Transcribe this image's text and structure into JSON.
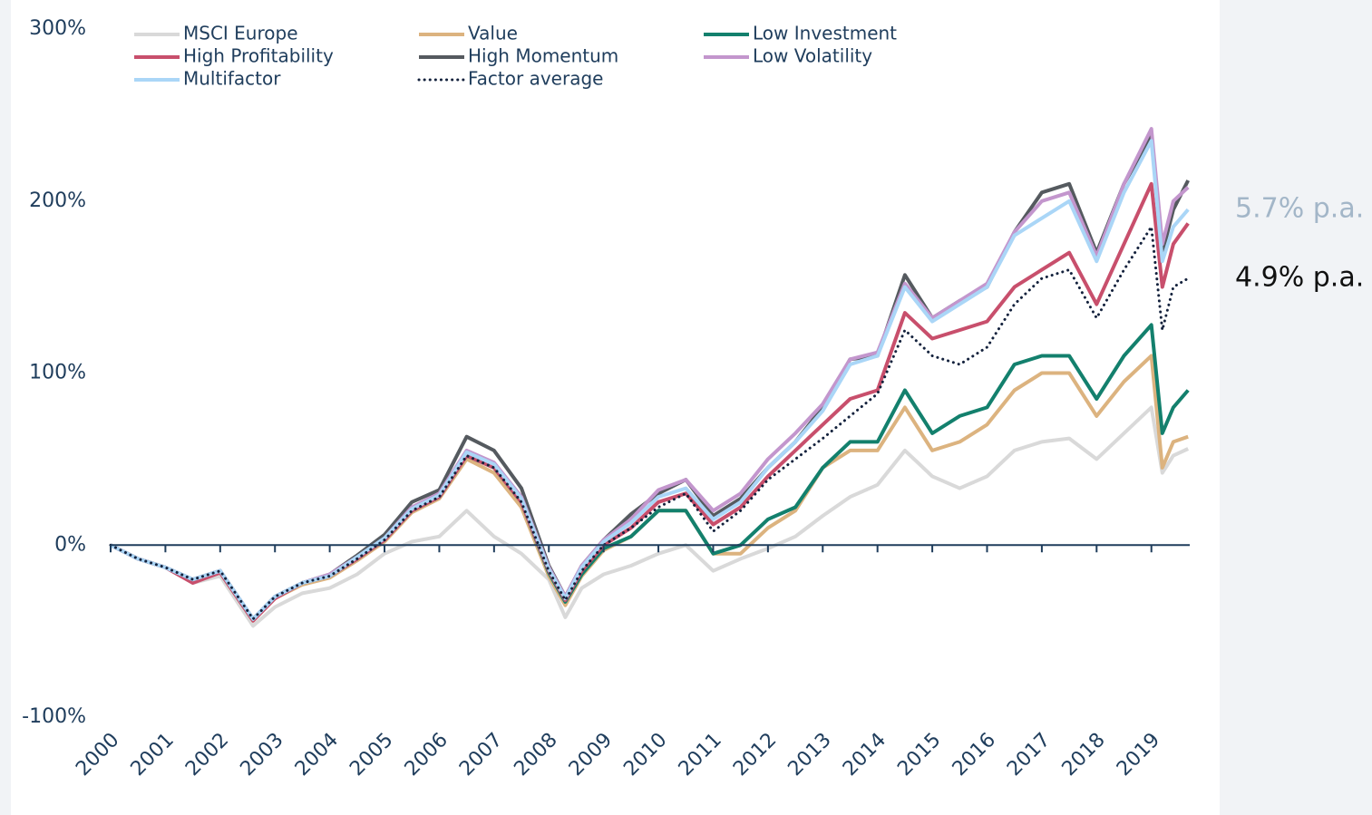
{
  "chart_data": {
    "type": "line",
    "x": [
      2000,
      2000.5,
      2001,
      2001.5,
      2002,
      2002.6,
      2003,
      2003.5,
      2004,
      2004.5,
      2005,
      2005.5,
      2006,
      2006.5,
      2007,
      2007.5,
      2008,
      2008.3,
      2008.6,
      2009,
      2009.5,
      2010,
      2010.5,
      2011,
      2011.5,
      2012,
      2012.5,
      2013,
      2013.5,
      2014,
      2014.5,
      2015,
      2015.5,
      2016,
      2016.5,
      2017,
      2017.5,
      2018,
      2018.5,
      2019,
      2019.2,
      2019.4,
      2019.67
    ],
    "series": [
      {
        "name": "MSCI Europe",
        "color": "#d9d9d9",
        "style": "solid",
        "values": [
          0,
          -8,
          -13,
          -22,
          -18,
          -47,
          -36,
          -28,
          -25,
          -17,
          -5,
          2,
          5,
          20,
          5,
          -5,
          -20,
          -42,
          -25,
          -17,
          -12,
          -5,
          0,
          -15,
          -8,
          -2,
          5,
          17,
          28,
          35,
          55,
          40,
          33,
          40,
          55,
          60,
          62,
          50,
          65,
          80,
          42,
          52,
          56
        ]
      },
      {
        "name": "Value",
        "color": "#dcb37f",
        "style": "solid",
        "values": [
          0,
          -8,
          -13,
          -21,
          -16,
          -44,
          -31,
          -23,
          -19,
          -9,
          2,
          19,
          27,
          50,
          42,
          22,
          -18,
          -35,
          -18,
          -3,
          5,
          20,
          20,
          -5,
          -5,
          10,
          20,
          45,
          55,
          55,
          80,
          55,
          60,
          70,
          90,
          100,
          100,
          75,
          95,
          110,
          45,
          60,
          63
        ]
      },
      {
        "name": "Low Investment",
        "color": "#13806d",
        "style": "solid",
        "values": [
          0,
          -8,
          -13,
          -20,
          -15,
          -43,
          -30,
          -22,
          -18,
          -8,
          3,
          20,
          28,
          52,
          45,
          25,
          -16,
          -33,
          -17,
          -2,
          5,
          20,
          20,
          -5,
          0,
          15,
          22,
          45,
          60,
          60,
          90,
          65,
          75,
          80,
          105,
          110,
          110,
          85,
          110,
          128,
          65,
          80,
          90
        ]
      },
      {
        "name": "High Profitability",
        "color": "#c84f6c",
        "style": "solid",
        "values": [
          0,
          -8,
          -13,
          -22,
          -16,
          -44,
          -31,
          -22,
          -18,
          -8,
          3,
          20,
          28,
          52,
          45,
          25,
          -15,
          -32,
          -15,
          0,
          10,
          25,
          30,
          12,
          22,
          40,
          55,
          70,
          85,
          90,
          135,
          120,
          125,
          130,
          150,
          160,
          170,
          140,
          175,
          210,
          150,
          175,
          187
        ]
      },
      {
        "name": "High Momentum",
        "color": "#555a5f",
        "style": "solid",
        "values": [
          0,
          -8,
          -13,
          -20,
          -15,
          -43,
          -30,
          -22,
          -17,
          -6,
          6,
          25,
          32,
          63,
          55,
          33,
          -12,
          -30,
          -12,
          3,
          18,
          30,
          38,
          17,
          27,
          45,
          60,
          80,
          108,
          110,
          157,
          132,
          142,
          150,
          182,
          205,
          210,
          170,
          210,
          238,
          170,
          195,
          212
        ]
      },
      {
        "name": "Low Volatility",
        "color": "#c396cd",
        "style": "solid",
        "values": [
          0,
          -8,
          -13,
          -20,
          -15,
          -43,
          -30,
          -22,
          -17,
          -7,
          4,
          22,
          30,
          55,
          48,
          28,
          -13,
          -30,
          -12,
          3,
          15,
          32,
          38,
          20,
          30,
          50,
          65,
          82,
          108,
          112,
          152,
          132,
          142,
          152,
          182,
          200,
          205,
          168,
          210,
          242,
          175,
          200,
          208
        ]
      },
      {
        "name": "Multifactor",
        "color": "#aad6f7",
        "style": "solid",
        "values": [
          0,
          -8,
          -13,
          -20,
          -15,
          -43,
          -30,
          -22,
          -18,
          -7,
          4,
          21,
          29,
          54,
          47,
          27,
          -14,
          -31,
          -13,
          2,
          13,
          28,
          33,
          15,
          25,
          45,
          60,
          78,
          105,
          110,
          150,
          130,
          140,
          150,
          180,
          190,
          200,
          165,
          205,
          235,
          165,
          185,
          195
        ]
      },
      {
        "name": "Factor average",
        "color": "#14223d",
        "style": "dotted",
        "values": [
          0,
          -8,
          -13,
          -20,
          -15,
          -43,
          -30,
          -22,
          -18,
          -8,
          3,
          20,
          28,
          52,
          45,
          25,
          -15,
          -32,
          -15,
          0,
          10,
          22,
          30,
          8,
          20,
          38,
          50,
          62,
          75,
          88,
          125,
          110,
          105,
          115,
          140,
          155,
          160,
          132,
          160,
          185,
          125,
          150,
          155
        ]
      }
    ],
    "xlim": [
      2000,
      2019.7
    ],
    "xticks": [
      2000,
      2001,
      2002,
      2003,
      2004,
      2005,
      2006,
      2007,
      2008,
      2009,
      2010,
      2011,
      2012,
      2013,
      2014,
      2015,
      2016,
      2017,
      2018,
      2019
    ],
    "ylim": [
      -100,
      300
    ],
    "yticks": [
      {
        "value": -100,
        "label": "-100%"
      },
      {
        "value": 0,
        "label": "0%"
      },
      {
        "value": 100,
        "label": "100%"
      },
      {
        "value": 200,
        "label": "200%"
      },
      {
        "value": 300,
        "label": "300%"
      }
    ],
    "annotations": [
      {
        "text": "5.7% p.a.",
        "color": "#a3b6c8"
      },
      {
        "text": "4.9% p.a.",
        "color": "#111111"
      }
    ]
  }
}
